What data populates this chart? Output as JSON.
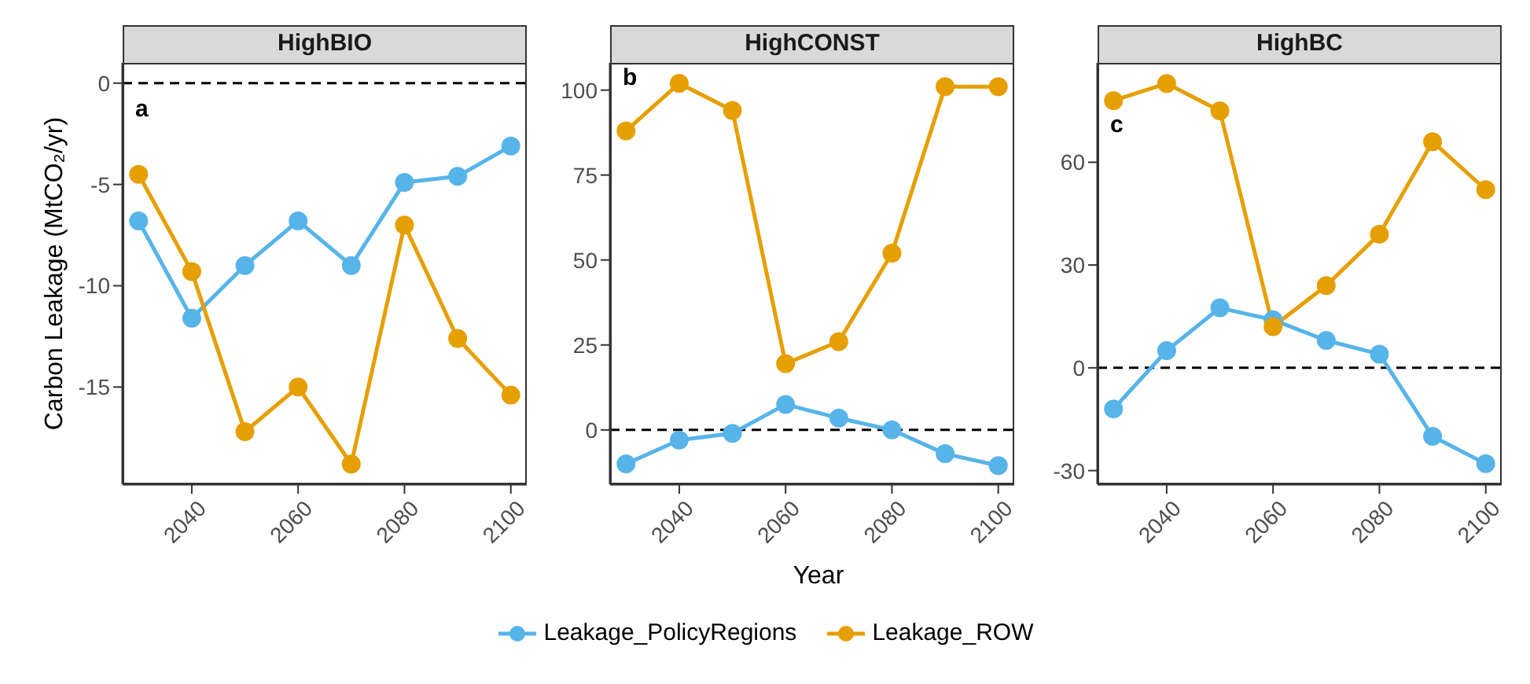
{
  "chart_data": [
    {
      "type": "line",
      "title": "HighBIO",
      "ylabel": "Carbon Leakage (MtCO₂/yr)",
      "annotations": [
        "a"
      ],
      "x": [
        2030,
        2040,
        2050,
        2060,
        2070,
        2080,
        2090,
        2100
      ],
      "xlim": [
        2027,
        2103
      ],
      "xticks": [
        2040,
        2060,
        2080,
        2100
      ],
      "ylim": [
        -19.8,
        1
      ],
      "yticks": [
        -15,
        -10,
        -5,
        0
      ],
      "marker": "circle",
      "line_style": "solid",
      "grid": false,
      "legend": "bottom",
      "ref_lines": [
        {
          "axis": "y",
          "value": 0,
          "line_style": "dashed",
          "color": "#000000"
        }
      ],
      "series": [
        {
          "name": "Leakage_PolicyRegions",
          "color": "#56b4e9",
          "values": [
            -6.8,
            -11.6,
            -9.0,
            -6.8,
            -9.0,
            -4.9,
            -4.6,
            -3.1
          ]
        },
        {
          "name": "Leakage_ROW",
          "color": "#e69f00",
          "values": [
            -4.5,
            -9.3,
            -17.2,
            -15.0,
            -18.8,
            -7.0,
            -12.6,
            -15.4
          ]
        }
      ]
    },
    {
      "type": "line",
      "title": "HighCONST",
      "xlabel": "Year",
      "annotations": [
        "b"
      ],
      "x": [
        2030,
        2040,
        2050,
        2060,
        2070,
        2080,
        2090,
        2100
      ],
      "xlim": [
        2027,
        2103
      ],
      "xticks": [
        2040,
        2060,
        2080,
        2100
      ],
      "ylim": [
        -16,
        108
      ],
      "yticks": [
        0,
        25,
        50,
        75,
        100
      ],
      "marker": "circle",
      "line_style": "solid",
      "grid": false,
      "legend": "bottom",
      "ref_lines": [
        {
          "axis": "y",
          "value": 0,
          "line_style": "dashed",
          "color": "#000000"
        }
      ],
      "series": [
        {
          "name": "Leakage_PolicyRegions",
          "color": "#56b4e9",
          "values": [
            -10,
            -3,
            -1,
            7.5,
            3.5,
            0,
            -7,
            -10.5
          ]
        },
        {
          "name": "Leakage_ROW",
          "color": "#e69f00",
          "values": [
            88,
            102,
            94,
            19.5,
            26,
            52,
            101,
            101
          ]
        }
      ]
    },
    {
      "type": "line",
      "title": "HighBC",
      "annotations": [
        "c"
      ],
      "x": [
        2030,
        2040,
        2050,
        2060,
        2070,
        2080,
        2090,
        2100
      ],
      "xlim": [
        2027,
        2103
      ],
      "xticks": [
        2040,
        2060,
        2080,
        2100
      ],
      "ylim": [
        -34,
        89
      ],
      "yticks": [
        -30,
        0,
        30,
        60
      ],
      "marker": "circle",
      "line_style": "solid",
      "grid": false,
      "legend": "bottom",
      "ref_lines": [
        {
          "axis": "y",
          "value": 0,
          "line_style": "dashed",
          "color": "#000000"
        }
      ],
      "series": [
        {
          "name": "Leakage_PolicyRegions",
          "color": "#56b4e9",
          "values": [
            -12,
            5,
            17.5,
            14,
            8,
            4,
            -20,
            -28
          ]
        },
        {
          "name": "Leakage_ROW",
          "color": "#e69f00",
          "values": [
            78,
            83,
            75,
            12,
            24,
            39,
            66,
            52
          ]
        }
      ]
    }
  ]
}
